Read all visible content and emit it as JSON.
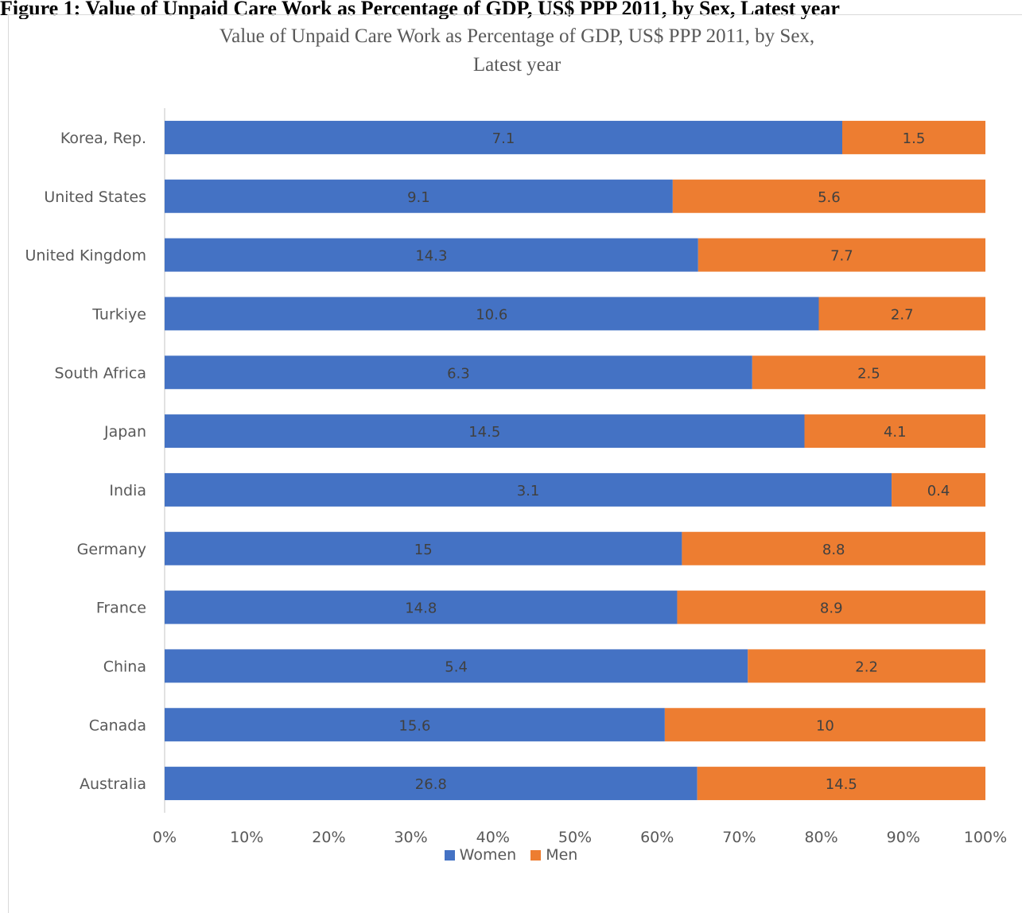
{
  "figure_caption": "Figure 1: Value of Unpaid Care Work as Percentage of GDP, US$ PPP 2011, by Sex, Latest year",
  "chart_data": {
    "type": "bar",
    "orientation": "horizontal",
    "stacking": "percent",
    "title_line1": "Value of Unpaid Care Work as Percentage of GDP, US$ PPP 2011, by Sex,",
    "title_line2": "Latest year",
    "categories": [
      "Korea, Rep.",
      "United States",
      "United Kingdom",
      "Turkiye",
      "South Africa",
      "Japan",
      "India",
      "Germany",
      "France",
      "China",
      "Canada",
      "Australia"
    ],
    "series": [
      {
        "name": "Women",
        "color": "#4472c4",
        "values": [
          7.1,
          9.1,
          14.3,
          10.6,
          6.3,
          14.5,
          3.1,
          15,
          14.8,
          5.4,
          15.6,
          26.8
        ]
      },
      {
        "name": "Men",
        "color": "#ed7d31",
        "values": [
          1.5,
          5.6,
          7.7,
          2.7,
          2.5,
          4.1,
          0.4,
          8.8,
          8.9,
          2.2,
          10,
          14.5
        ]
      }
    ],
    "x_ticks": [
      "0%",
      "10%",
      "20%",
      "30%",
      "40%",
      "50%",
      "60%",
      "70%",
      "80%",
      "90%",
      "100%"
    ],
    "xlim": [
      0,
      100
    ],
    "grid": false,
    "legend_position": "bottom"
  }
}
